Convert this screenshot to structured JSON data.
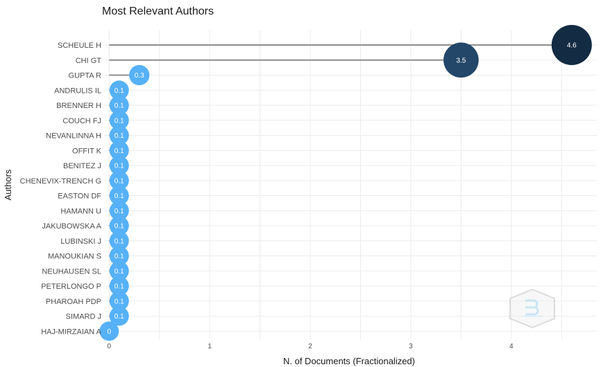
{
  "chart_data": {
    "type": "scatter",
    "title": "Most Relevant Authors",
    "xlabel": "N. of Documents (Fractionalized)",
    "ylabel": "Authors",
    "xlim": [
      -0.05,
      4.85
    ],
    "x_ticks": [
      "0",
      "1",
      "2",
      "3",
      "4"
    ],
    "grid": true,
    "legend": "none",
    "authors": [
      "SCHEULE H",
      "CHI GT",
      "GUPTA R",
      "ANDRULIS IL",
      "BRENNER H",
      "COUCH FJ",
      "NEVANLINNA H",
      "OFFIT K",
      "BENITEZ J",
      "CHENEVIX-TRENCH G",
      "EASTON DF",
      "HAMANN U",
      "JAKUBOWSKA A",
      "LUBINSKI J",
      "MANOUKIAN S",
      "NEUHAUSEN SL",
      "PETERLONGO P",
      "PHAROAH PDP",
      "SIMARD J",
      "HAJ-MIRZAIAN A"
    ],
    "values": [
      4.6,
      3.5,
      0.3,
      0.1,
      0.1,
      0.1,
      0.1,
      0.1,
      0.1,
      0.1,
      0.1,
      0.1,
      0.1,
      0.1,
      0.1,
      0.1,
      0.1,
      0.1,
      0.1,
      0.0
    ],
    "value_labels": [
      "4.6",
      "3.5",
      "0.3",
      "0.1",
      "0.1",
      "0.1",
      "0.1",
      "0.1",
      "0.1",
      "0.1",
      "0.1",
      "0.1",
      "0.1",
      "0.1",
      "0.1",
      "0.1",
      "0.1",
      "0.1",
      "0.1",
      "0"
    ],
    "colors": {
      "high": "#132b43",
      "mid": "#24486b",
      "low": "#56b1f7",
      "stem": "#8c8c8c",
      "grid": "#ebebeb"
    }
  }
}
